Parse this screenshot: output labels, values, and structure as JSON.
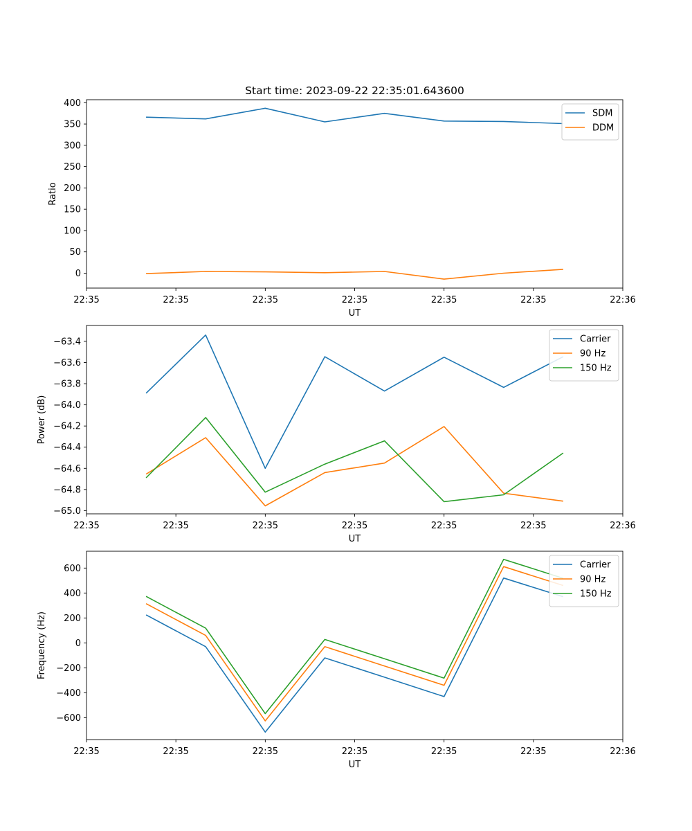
{
  "title": "Start time: 2023-09-22 22:35:01.643600",
  "chart_data": [
    {
      "type": "line",
      "title": "Start time: 2023-09-22 22:35:01.643600",
      "xlabel": "UT",
      "ylabel": "Ratio",
      "x": [
        0.5,
        1.0,
        1.5,
        2.0,
        2.5,
        3.0,
        3.5,
        4.0
      ],
      "xlim": [
        0,
        4.5
      ],
      "xticks": [
        0,
        0.75,
        1.5,
        2.25,
        3.0,
        3.75,
        4.5
      ],
      "xtick_labels": [
        "22:35",
        "22:35",
        "22:35",
        "22:35",
        "22:35",
        "22:35",
        "22:36"
      ],
      "ylim": [
        -35,
        407
      ],
      "yticks": [
        0,
        50,
        100,
        150,
        200,
        250,
        300,
        350,
        400
      ],
      "ytick_labels": [
        "0",
        "50",
        "100",
        "150",
        "200",
        "250",
        "300",
        "350",
        "400"
      ],
      "legend_position": "upper-right",
      "series": [
        {
          "name": "SDM",
          "color": "#1f77b4",
          "values": [
            366,
            362,
            387,
            355,
            375,
            357,
            356,
            351
          ]
        },
        {
          "name": "DDM",
          "color": "#ff7f0e",
          "values": [
            -1,
            4,
            3,
            1,
            4,
            -14,
            0,
            9
          ]
        }
      ]
    },
    {
      "type": "line",
      "title": "",
      "xlabel": "UT",
      "ylabel": "Power (dB)",
      "x": [
        0.5,
        1.0,
        1.5,
        2.0,
        2.5,
        3.0,
        3.5,
        4.0
      ],
      "xlim": [
        0,
        4.5
      ],
      "xticks": [
        0,
        0.75,
        1.5,
        2.25,
        3.0,
        3.75,
        4.5
      ],
      "xtick_labels": [
        "22:35",
        "22:35",
        "22:35",
        "22:35",
        "22:35",
        "22:35",
        "22:36"
      ],
      "ylim": [
        -65.03,
        -63.25
      ],
      "yticks": [
        -65.0,
        -64.8,
        -64.6,
        -64.4,
        -64.2,
        -64.0,
        -63.8,
        -63.6,
        -63.4
      ],
      "ytick_labels": [
        "−65.0",
        "−64.8",
        "−64.6",
        "−64.4",
        "−64.2",
        "−64.0",
        "−63.8",
        "−63.6",
        "−63.4"
      ],
      "legend_position": "upper-right",
      "series": [
        {
          "name": "Carrier",
          "color": "#1f77b4",
          "values": [
            -63.89,
            -63.34,
            -64.6,
            -63.545,
            -63.87,
            -63.55,
            -63.835,
            -63.545
          ]
        },
        {
          "name": "90 Hz",
          "color": "#ff7f0e",
          "values": [
            -64.655,
            -64.31,
            -64.955,
            -64.64,
            -64.55,
            -64.205,
            -64.835,
            -64.91
          ]
        },
        {
          "name": "150 Hz",
          "color": "#2ca02c",
          "values": [
            -64.69,
            -64.12,
            -64.825,
            -64.56,
            -64.34,
            -64.915,
            -64.85,
            -64.455
          ]
        }
      ]
    },
    {
      "type": "line",
      "title": "",
      "xlabel": "UT",
      "ylabel": "Frequency (Hz)",
      "x": [
        0.5,
        1.0,
        1.5,
        2.0,
        2.5,
        3.0,
        3.5,
        4.0
      ],
      "xlim": [
        0,
        4.5
      ],
      "xticks": [
        0,
        0.75,
        1.5,
        2.25,
        3.0,
        3.75,
        4.5
      ],
      "xtick_labels": [
        "22:35",
        "22:35",
        "22:35",
        "22:35",
        "22:35",
        "22:35",
        "22:36"
      ],
      "ylim": [
        -775,
        735
      ],
      "yticks": [
        -600,
        -400,
        -200,
        0,
        200,
        400,
        600
      ],
      "ytick_labels": [
        "−600",
        "−400",
        "−200",
        "0",
        "200",
        "400",
        "600"
      ],
      "legend_position": "upper-right",
      "series": [
        {
          "name": "Carrier",
          "color": "#1f77b4",
          "values": [
            225,
            -30,
            -715,
            -120,
            -275,
            -430,
            520,
            370
          ]
        },
        {
          "name": "90 Hz",
          "color": "#ff7f0e",
          "values": [
            315,
            60,
            -625,
            -30,
            -185,
            -340,
            612,
            460
          ]
        },
        {
          "name": "150 Hz",
          "color": "#2ca02c",
          "values": [
            373,
            118,
            -567,
            28,
            -127,
            -282,
            670,
            518
          ]
        }
      ]
    }
  ]
}
